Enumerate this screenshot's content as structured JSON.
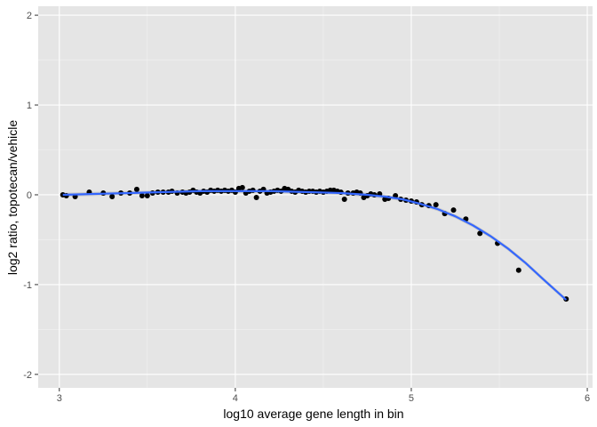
{
  "chart_data": {
    "type": "scatter",
    "title": "",
    "xlabel": "log10 average gene length in bin",
    "ylabel": "log2 ratio, topotecan/vehicle",
    "xlim": [
      2.88,
      6.03
    ],
    "ylim": [
      -2.15,
      2.1
    ],
    "x_ticks": [
      3,
      4,
      5,
      6
    ],
    "x_tick_labels": [
      "3",
      "4",
      "5",
      "6"
    ],
    "y_ticks": [
      -2,
      -1,
      0,
      1,
      2
    ],
    "y_tick_labels": [
      "-2",
      "-1",
      "0",
      "1",
      "2"
    ],
    "grid": true,
    "legend": "none",
    "colors": {
      "panel": "#e5e5e5",
      "grid_major": "#ffffff",
      "grid_minor": "#f2f2f2",
      "points": "#000000",
      "smooth_line": "#3366ff",
      "smooth_band": "#999999"
    },
    "points": [
      [
        3.02,
        0.0
      ],
      [
        3.04,
        -0.01
      ],
      [
        3.09,
        -0.02
      ],
      [
        3.17,
        0.03
      ],
      [
        3.25,
        0.02
      ],
      [
        3.3,
        -0.02
      ],
      [
        3.35,
        0.02
      ],
      [
        3.4,
        0.02
      ],
      [
        3.44,
        0.06
      ],
      [
        3.47,
        -0.01
      ],
      [
        3.5,
        -0.01
      ],
      [
        3.53,
        0.02
      ],
      [
        3.56,
        0.03
      ],
      [
        3.59,
        0.03
      ],
      [
        3.62,
        0.03
      ],
      [
        3.64,
        0.04
      ],
      [
        3.67,
        0.02
      ],
      [
        3.7,
        0.03
      ],
      [
        3.72,
        0.02
      ],
      [
        3.74,
        0.03
      ],
      [
        3.76,
        0.05
      ],
      [
        3.78,
        0.03
      ],
      [
        3.8,
        0.02
      ],
      [
        3.82,
        0.04
      ],
      [
        3.84,
        0.03
      ],
      [
        3.86,
        0.05
      ],
      [
        3.88,
        0.04
      ],
      [
        3.9,
        0.05
      ],
      [
        3.92,
        0.04
      ],
      [
        3.94,
        0.05
      ],
      [
        3.96,
        0.04
      ],
      [
        3.98,
        0.05
      ],
      [
        4.0,
        0.03
      ],
      [
        4.02,
        0.07
      ],
      [
        4.04,
        0.08
      ],
      [
        4.06,
        0.02
      ],
      [
        4.08,
        0.04
      ],
      [
        4.1,
        0.05
      ],
      [
        4.12,
        -0.03
      ],
      [
        4.14,
        0.04
      ],
      [
        4.16,
        0.06
      ],
      [
        4.18,
        0.02
      ],
      [
        4.2,
        0.03
      ],
      [
        4.22,
        0.04
      ],
      [
        4.24,
        0.05
      ],
      [
        4.26,
        0.04
      ],
      [
        4.28,
        0.07
      ],
      [
        4.3,
        0.06
      ],
      [
        4.32,
        0.04
      ],
      [
        4.34,
        0.03
      ],
      [
        4.36,
        0.05
      ],
      [
        4.38,
        0.04
      ],
      [
        4.4,
        0.03
      ],
      [
        4.42,
        0.04
      ],
      [
        4.44,
        0.04
      ],
      [
        4.46,
        0.03
      ],
      [
        4.48,
        0.04
      ],
      [
        4.5,
        0.03
      ],
      [
        4.52,
        0.04
      ],
      [
        4.54,
        0.05
      ],
      [
        4.56,
        0.05
      ],
      [
        4.58,
        0.04
      ],
      [
        4.6,
        0.03
      ],
      [
        4.62,
        -0.05
      ],
      [
        4.64,
        0.02
      ],
      [
        4.67,
        0.02
      ],
      [
        4.69,
        0.03
      ],
      [
        4.71,
        0.02
      ],
      [
        4.73,
        -0.03
      ],
      [
        4.75,
        -0.01
      ],
      [
        4.77,
        0.01
      ],
      [
        4.79,
        0.0
      ],
      [
        4.82,
        0.01
      ],
      [
        4.85,
        -0.05
      ],
      [
        4.87,
        -0.04
      ],
      [
        4.91,
        -0.01
      ],
      [
        4.94,
        -0.05
      ],
      [
        4.97,
        -0.06
      ],
      [
        5.0,
        -0.07
      ],
      [
        5.03,
        -0.08
      ],
      [
        5.06,
        -0.11
      ],
      [
        5.1,
        -0.12
      ],
      [
        5.14,
        -0.11
      ],
      [
        5.19,
        -0.21
      ],
      [
        5.24,
        -0.17
      ],
      [
        5.31,
        -0.27
      ],
      [
        5.39,
        -0.43
      ],
      [
        5.49,
        -0.54
      ],
      [
        5.61,
        -0.84
      ],
      [
        5.88,
        -1.16
      ]
    ],
    "smooth_line": [
      [
        3.02,
        0.0
      ],
      [
        3.2,
        0.01
      ],
      [
        3.4,
        0.02
      ],
      [
        3.6,
        0.03
      ],
      [
        3.8,
        0.04
      ],
      [
        4.0,
        0.04
      ],
      [
        4.2,
        0.04
      ],
      [
        4.4,
        0.03
      ],
      [
        4.6,
        0.02
      ],
      [
        4.75,
        0.0
      ],
      [
        4.85,
        -0.02
      ],
      [
        4.95,
        -0.05
      ],
      [
        5.05,
        -0.1
      ],
      [
        5.15,
        -0.16
      ],
      [
        5.25,
        -0.24
      ],
      [
        5.35,
        -0.34
      ],
      [
        5.45,
        -0.46
      ],
      [
        5.55,
        -0.6
      ],
      [
        5.65,
        -0.76
      ],
      [
        5.75,
        -0.94
      ],
      [
        5.88,
        -1.17
      ]
    ]
  }
}
